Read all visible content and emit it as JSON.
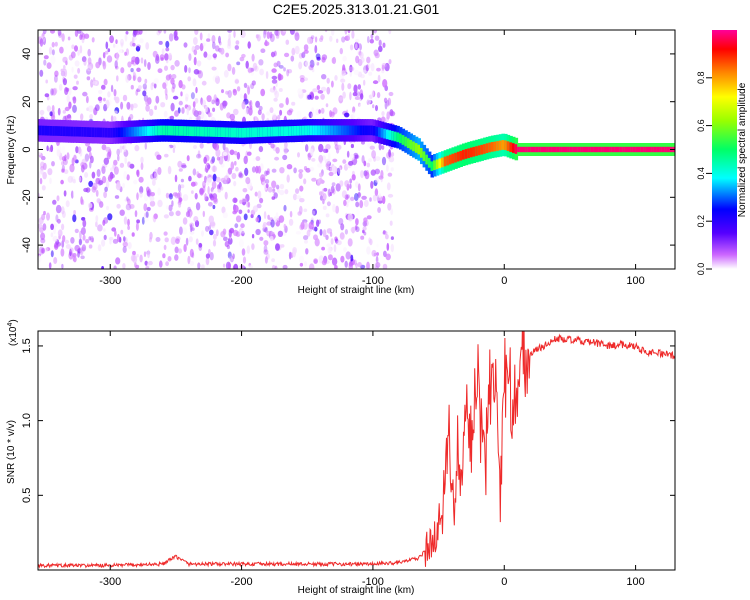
{
  "title": "C2E5.2025.313.01.21.G01",
  "colors": {
    "snr_line": "#ee2a2a",
    "background": "#ffffff",
    "colormap": [
      "#ffffff",
      "#cc66ff",
      "#5500ff",
      "#0000ff",
      "#00ffff",
      "#00ff66",
      "#99ff00",
      "#ffff00",
      "#ff8800",
      "#ff0000",
      "#ff0099"
    ]
  },
  "chart_data": [
    {
      "type": "heatmap",
      "name": "spectrogram",
      "xlabel": "Height of straight line (km)",
      "ylabel": "Frequency (Hz)",
      "xlim": [
        -355,
        130
      ],
      "ylim": [
        -50,
        50
      ],
      "x_ticks": [
        -300,
        -200,
        -100,
        0,
        100
      ],
      "y_ticks": [
        -40,
        -20,
        0,
        20,
        40
      ],
      "x_tick_labels": [
        "-300",
        "-200",
        "-100",
        "0",
        "100"
      ],
      "y_tick_labels": [
        "-40",
        "-20",
        "0",
        "20",
        "40"
      ],
      "colorbar": {
        "label": "Normalized spectral amplitude",
        "range": [
          0,
          1
        ],
        "ticks": [
          0.0,
          0.2,
          0.4,
          0.6,
          0.8
        ],
        "tick_labels": [
          "0.0",
          "0.2",
          "0.4",
          "0.6",
          "0.8"
        ]
      },
      "noise_region": {
        "x_range": [
          -355,
          -85
        ],
        "amplitude": 0.1
      },
      "ridge": [
        {
          "x": -355,
          "freq": 8,
          "amp": 0.22
        },
        {
          "x": -300,
          "freq": 7,
          "amp": 0.2
        },
        {
          "x": -260,
          "freq": 8,
          "amp": 0.45
        },
        {
          "x": -200,
          "freq": 7,
          "amp": 0.42
        },
        {
          "x": -150,
          "freq": 8,
          "amp": 0.4
        },
        {
          "x": -100,
          "freq": 8,
          "amp": 0.22
        },
        {
          "x": -80,
          "freq": 5,
          "amp": 0.5
        },
        {
          "x": -65,
          "freq": 0,
          "amp": 0.62
        },
        {
          "x": -55,
          "freq": -7,
          "amp": 0.5
        },
        {
          "x": -45,
          "freq": -5,
          "amp": 0.85
        },
        {
          "x": -30,
          "freq": -2,
          "amp": 0.9
        },
        {
          "x": -10,
          "freq": 1,
          "amp": 0.85
        },
        {
          "x": 0,
          "freq": 2,
          "amp": 0.8
        },
        {
          "x": 10,
          "freq": 0,
          "amp": 0.98
        },
        {
          "x": 130,
          "freq": 0,
          "amp": 0.98
        }
      ]
    },
    {
      "type": "line",
      "name": "snr",
      "xlabel": "Height of straight line (km)",
      "ylabel": "SNR (10 * v/v)",
      "y_multiplier": "(x10",
      "y_multiplier_exp": "4",
      "y_multiplier_close": ")",
      "xlim": [
        -355,
        130
      ],
      "ylim": [
        0,
        1.6
      ],
      "x_ticks": [
        -300,
        -200,
        -100,
        0,
        100
      ],
      "y_ticks": [
        0.5,
        1.0,
        1.5
      ],
      "x_tick_labels": [
        "-300",
        "-200",
        "-100",
        "0",
        "100"
      ],
      "y_tick_labels": [
        "0.5",
        "1.0",
        "1.5"
      ],
      "series": [
        {
          "name": "SNR",
          "x": [
            -355,
            -300,
            -260,
            -250,
            -240,
            -200,
            -150,
            -100,
            -80,
            -65,
            -55,
            -50,
            -45,
            -42,
            -40,
            -38,
            -35,
            -32,
            -30,
            -25,
            -20,
            -15,
            -10,
            -5,
            -3,
            0,
            5,
            10,
            15,
            20,
            30,
            40,
            50,
            60,
            70,
            80,
            90,
            100,
            105,
            110,
            120,
            130
          ],
          "values": [
            0.03,
            0.03,
            0.04,
            0.09,
            0.04,
            0.04,
            0.04,
            0.04,
            0.05,
            0.08,
            0.18,
            0.3,
            0.6,
            0.8,
            0.55,
            0.3,
            0.8,
            0.5,
            1.15,
            0.85,
            1.3,
            0.8,
            1.2,
            1.1,
            0.55,
            1.25,
            1.1,
            1.25,
            1.4,
            1.45,
            1.5,
            1.55,
            1.54,
            1.53,
            1.52,
            1.5,
            1.51,
            1.5,
            1.47,
            1.46,
            1.45,
            1.43
          ]
        }
      ]
    }
  ]
}
